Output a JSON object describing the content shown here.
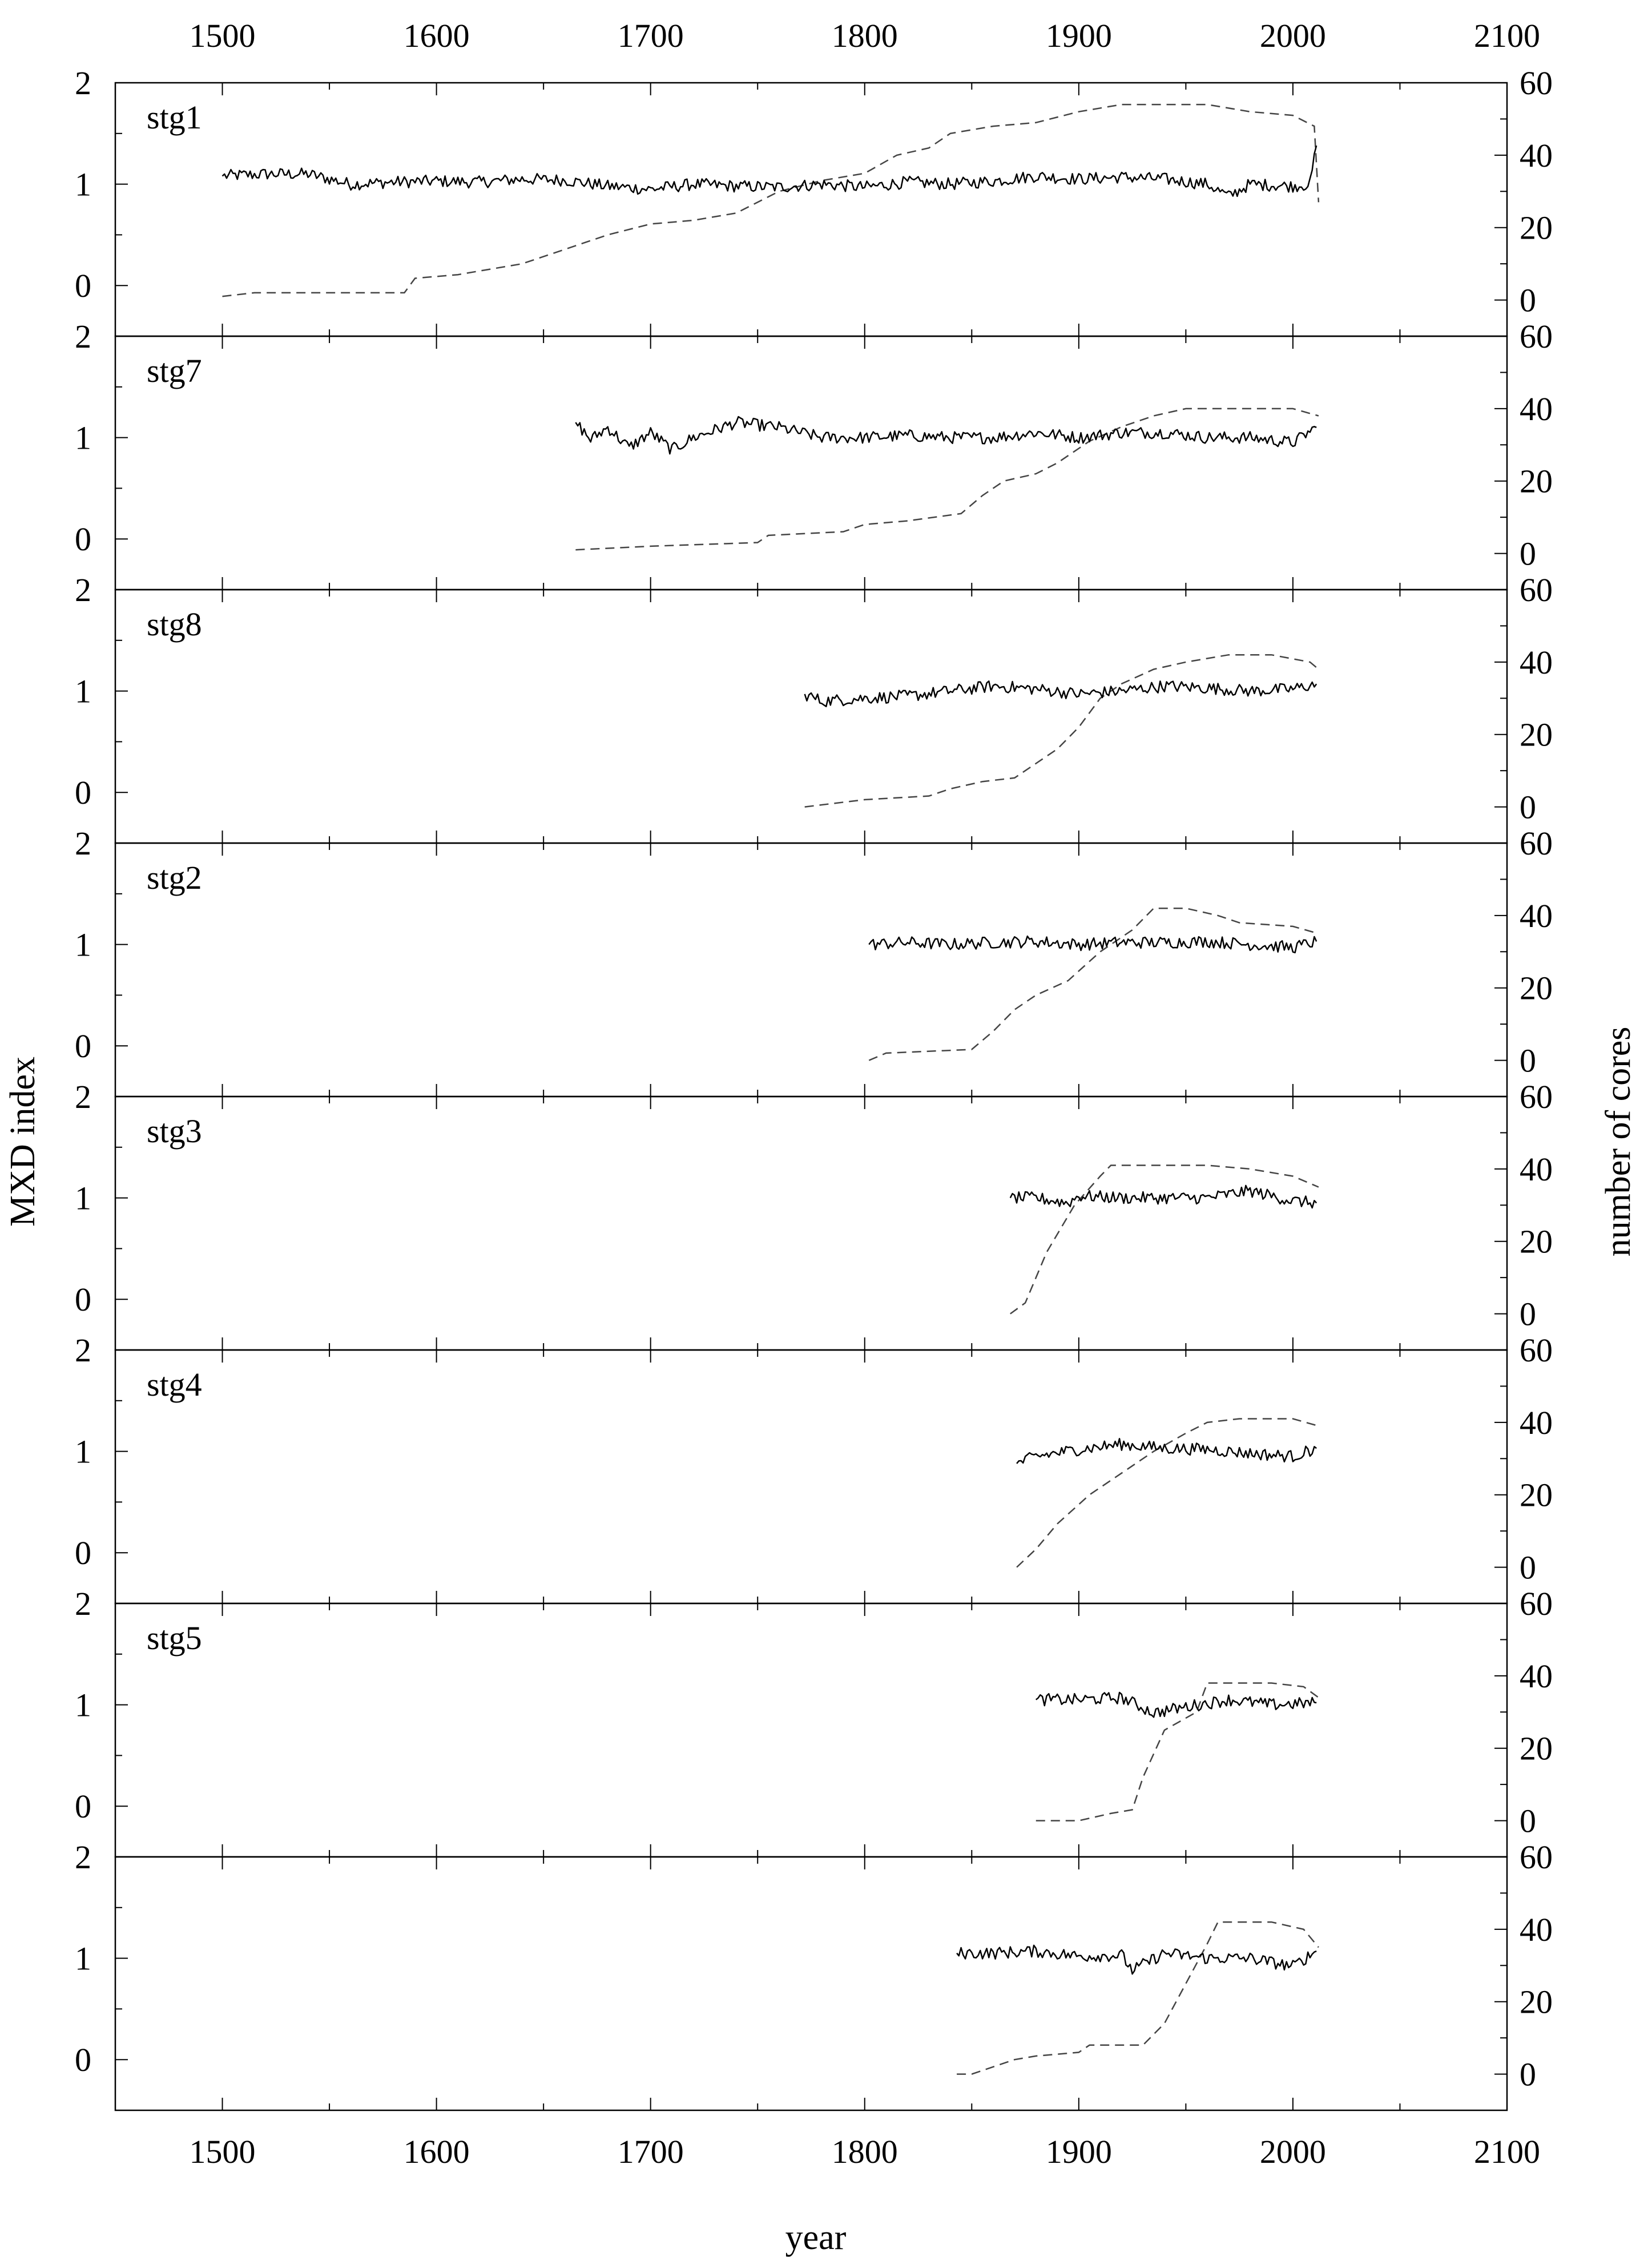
{
  "chart_data": {
    "type": "line",
    "xlabel": "year",
    "ylabel_left": "MXD index",
    "ylabel_right": "number of cores",
    "xlim": [
      1450,
      2100
    ],
    "x_ticks": [
      1500,
      1600,
      1700,
      1800,
      1900,
      2000,
      2100
    ],
    "x_tick_labels": [
      "1500",
      "1600",
      "1700",
      "1800",
      "1900",
      "2000",
      "2100"
    ],
    "ylim_left": [
      -0.5,
      2
    ],
    "y_ticks_left": [
      0,
      1,
      2
    ],
    "y_tick_labels_left": [
      "0",
      "1",
      "2"
    ],
    "ylim_right": [
      -10,
      60
    ],
    "y_ticks_right": [
      0,
      20,
      40,
      60
    ],
    "y_tick_labels_right": [
      "0",
      "20",
      "40",
      "60"
    ],
    "line_styles": {
      "mxd_index": "solid",
      "number_of_cores": "dashed"
    },
    "panels": [
      {
        "label": "stg1",
        "mxd_index": {
          "x": [
            1500,
            1520,
            1540,
            1560,
            1580,
            1600,
            1620,
            1640,
            1660,
            1680,
            1700,
            1720,
            1740,
            1760,
            1780,
            1800,
            1820,
            1840,
            1860,
            1880,
            1900,
            1920,
            1940,
            1960,
            1970,
            1980,
            2000,
            2008,
            2011
          ],
          "y": [
            1.08,
            1.1,
            1.1,
            1.0,
            1.02,
            1.03,
            1.02,
            1.05,
            1.04,
            0.98,
            0.95,
            1.0,
            0.98,
            0.97,
            1.0,
            0.97,
            1.02,
            1.0,
            1.03,
            1.08,
            1.05,
            1.07,
            1.05,
            1.0,
            0.88,
            1.0,
            0.98,
            1.0,
            1.38
          ]
        },
        "number_of_cores": {
          "x": [
            1500,
            1515,
            1585,
            1590,
            1610,
            1620,
            1640,
            1660,
            1680,
            1700,
            1720,
            1740,
            1760,
            1780,
            1800,
            1815,
            1830,
            1840,
            1860,
            1880,
            1900,
            1920,
            1960,
            1980,
            2000,
            2010,
            2012
          ],
          "y": [
            1,
            2,
            2,
            6,
            7,
            8,
            10,
            14,
            18,
            21,
            22,
            24,
            30,
            33,
            35,
            40,
            42,
            46,
            48,
            49,
            52,
            54,
            54,
            52,
            51,
            48,
            27
          ]
        }
      },
      {
        "label": "stg7",
        "mxd_index": {
          "x": [
            1665,
            1672,
            1680,
            1690,
            1700,
            1710,
            1720,
            1740,
            1760,
            1780,
            1800,
            1820,
            1840,
            1860,
            1880,
            1900,
            1920,
            1940,
            1960,
            1980,
            2000,
            2011
          ],
          "y": [
            1.15,
            0.98,
            1.1,
            0.9,
            1.05,
            0.88,
            1.0,
            1.15,
            1.1,
            1.0,
            1.0,
            1.02,
            1.0,
            1.0,
            1.05,
            1.0,
            1.05,
            1.05,
            1.0,
            1.0,
            0.95,
            1.1
          ]
        },
        "number_of_cores": {
          "x": [
            1665,
            1700,
            1750,
            1755,
            1790,
            1800,
            1820,
            1845,
            1855,
            1865,
            1880,
            1890,
            1905,
            1920,
            1935,
            1950,
            1975,
            2000,
            2012
          ],
          "y": [
            1,
            2,
            3,
            5,
            6,
            8,
            9,
            11,
            16,
            20,
            22,
            25,
            31,
            35,
            38,
            40,
            40,
            40,
            38
          ]
        }
      },
      {
        "label": "stg8",
        "mxd_index": {
          "x": [
            1772,
            1780,
            1800,
            1820,
            1840,
            1860,
            1880,
            1900,
            1920,
            1940,
            1960,
            1980,
            2000,
            2011
          ],
          "y": [
            0.97,
            0.9,
            0.93,
            0.95,
            1.0,
            1.05,
            1.02,
            0.97,
            1.0,
            1.05,
            1.03,
            1.0,
            1.02,
            1.07
          ]
        },
        "number_of_cores": {
          "x": [
            1772,
            1800,
            1830,
            1840,
            1855,
            1870,
            1880,
            1890,
            1900,
            1910,
            1920,
            1935,
            1950,
            1970,
            1990,
            2008,
            2012
          ],
          "y": [
            0,
            2,
            3,
            5,
            7,
            8,
            12,
            16,
            22,
            30,
            34,
            38,
            40,
            42,
            42,
            40,
            38
          ]
        }
      },
      {
        "label": "stg2",
        "mxd_index": {
          "x": [
            1802,
            1820,
            1840,
            1860,
            1880,
            1900,
            1920,
            1940,
            1960,
            1980,
            2000,
            2011
          ],
          "y": [
            1.0,
            1.02,
            1.0,
            1.02,
            1.03,
            1.0,
            1.02,
            1.02,
            1.03,
            1.0,
            0.97,
            1.03
          ]
        },
        "number_of_cores": {
          "x": [
            1802,
            1810,
            1850,
            1860,
            1870,
            1880,
            1895,
            1910,
            1925,
            1935,
            1950,
            1965,
            1975,
            2000,
            2012
          ],
          "y": [
            0,
            2,
            3,
            8,
            14,
            18,
            22,
            30,
            36,
            42,
            42,
            40,
            38,
            37,
            35
          ]
        }
      },
      {
        "label": "stg3",
        "mxd_index": {
          "x": [
            1868,
            1880,
            1895,
            1900,
            1920,
            1940,
            1960,
            1980,
            2000,
            2011
          ],
          "y": [
            1.0,
            1.0,
            0.95,
            1.02,
            1.0,
            1.0,
            1.0,
            1.07,
            0.97,
            0.95
          ]
        },
        "number_of_cores": {
          "x": [
            1868,
            1875,
            1885,
            1898,
            1910,
            1915,
            1940,
            1960,
            1980,
            2000,
            2012
          ],
          "y": [
            0,
            3,
            17,
            30,
            38,
            41,
            41,
            41,
            40,
            38,
            35
          ]
        }
      },
      {
        "label": "stg4",
        "mxd_index": {
          "x": [
            1871,
            1880,
            1900,
            1920,
            1940,
            1960,
            1980,
            2000,
            2011
          ],
          "y": [
            0.88,
            0.95,
            1.02,
            1.07,
            1.03,
            1.02,
            0.98,
            0.95,
            1.03
          ]
        },
        "number_of_cores": {
          "x": [
            1871,
            1880,
            1890,
            1905,
            1920,
            1935,
            1950,
            1960,
            1975,
            2000,
            2012
          ],
          "y": [
            0,
            5,
            12,
            20,
            26,
            32,
            37,
            40,
            41,
            41,
            39
          ]
        }
      },
      {
        "label": "stg5",
        "mxd_index": {
          "x": [
            1880,
            1900,
            1920,
            1935,
            1950,
            1970,
            1990,
            2011
          ],
          "y": [
            1.05,
            1.05,
            1.07,
            0.92,
            0.98,
            1.05,
            1.0,
            1.02
          ]
        },
        "number_of_cores": {
          "x": [
            1880,
            1900,
            1915,
            1925,
            1930,
            1940,
            1955,
            1960,
            1990,
            2005,
            2012
          ],
          "y": [
            0,
            0,
            2,
            3,
            12,
            25,
            30,
            38,
            38,
            37,
            34
          ]
        }
      },
      {
        "label": "",
        "mxd_index": {
          "x": [
            1843,
            1860,
            1880,
            1900,
            1920,
            1925,
            1940,
            1960,
            1980,
            2000,
            2011
          ],
          "y": [
            1.05,
            1.05,
            1.07,
            1.02,
            1.03,
            0.88,
            1.05,
            1.0,
            1.0,
            0.92,
            1.07
          ]
        },
        "number_of_cores": {
          "x": [
            1843,
            1850,
            1870,
            1880,
            1900,
            1905,
            1930,
            1940,
            1950,
            1960,
            1965,
            1990,
            2005,
            2012
          ],
          "y": [
            0,
            0,
            4,
            5,
            6,
            8,
            8,
            14,
            25,
            36,
            42,
            42,
            40,
            35
          ]
        }
      }
    ]
  }
}
